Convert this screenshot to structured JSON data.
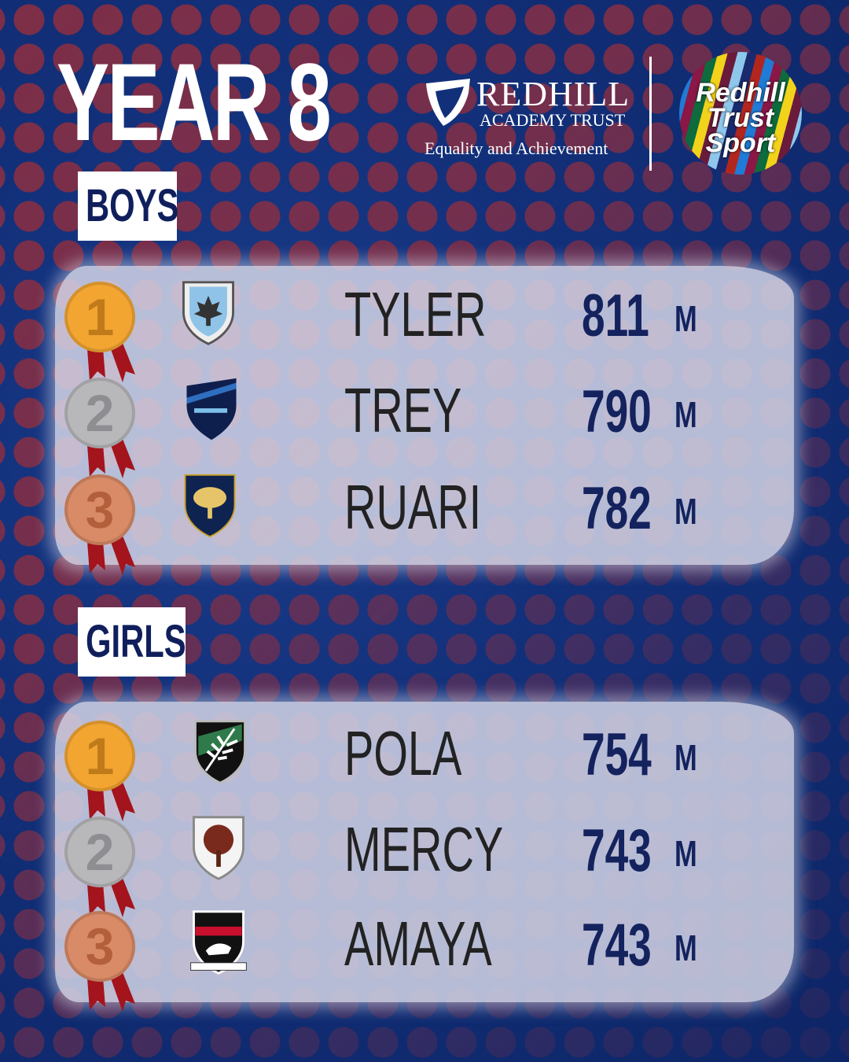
{
  "title": "YEAR 8",
  "branding": {
    "name": "REDHILL",
    "subtitle": "ACADEMY TRUST",
    "tagline": "Equality and Achievement",
    "sport_logo": [
      "Redhill",
      "Trust",
      "Sport"
    ]
  },
  "colors": {
    "background": "#12307a",
    "dots": "#7e2f48",
    "gold": "#f2a531",
    "silver": "#b5b5b8",
    "bronze": "#d98a66",
    "score": "#14235e"
  },
  "sections": [
    {
      "label": "BOYS",
      "unit": "M",
      "entries": [
        {
          "rank": "1",
          "medal": "gold",
          "name": "TYLER",
          "score": "811",
          "crest": "maple-leaf-crest"
        },
        {
          "rank": "2",
          "medal": "silver",
          "name": "TREY",
          "score": "790",
          "crest": "castle-crest"
        },
        {
          "rank": "3",
          "medal": "bronze",
          "name": "RUARI",
          "score": "782",
          "crest": "tree-crest"
        }
      ]
    },
    {
      "label": "GIRLS",
      "unit": "M",
      "entries": [
        {
          "rank": "1",
          "medal": "gold",
          "name": "POLA",
          "score": "754",
          "crest": "palm-leaf-crest"
        },
        {
          "rank": "2",
          "medal": "silver",
          "name": "MERCY",
          "score": "743",
          "crest": "oak-tree-crest"
        },
        {
          "rank": "3",
          "medal": "bronze",
          "name": "AMAYA",
          "score": "743",
          "crest": "stag-crest"
        }
      ]
    }
  ]
}
